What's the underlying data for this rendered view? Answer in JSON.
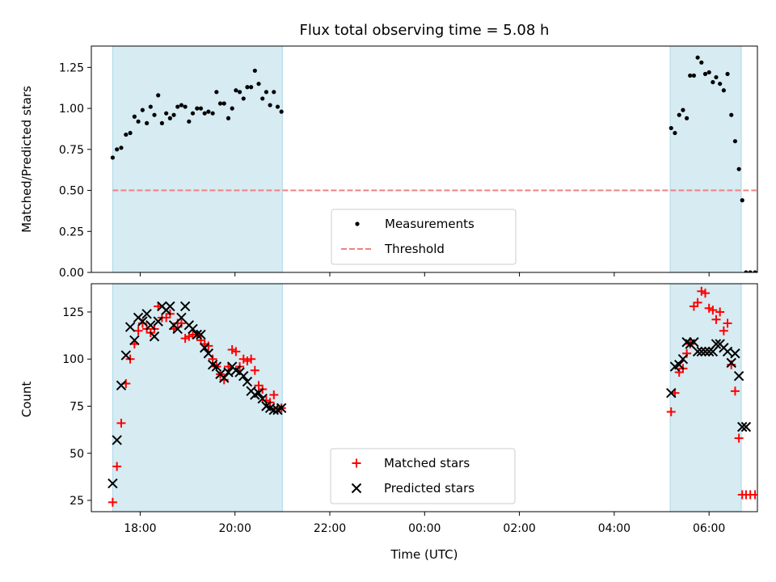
{
  "chart_data": {
    "type": "scatter",
    "title": "Flux total observing time = 5.08 h",
    "xlabel": "Time (UTC)",
    "x_ticks": [
      "18:00",
      "20:00",
      "22:00",
      "00:00",
      "02:00",
      "04:00",
      "06:00"
    ],
    "x_tick_hours": [
      18,
      20,
      22,
      24,
      26,
      28,
      30
    ],
    "xlim_hours": [
      16.97,
      31.02
    ],
    "shaded_intervals_hours": [
      [
        17.42,
        21.0
      ],
      [
        29.18,
        30.68
      ]
    ],
    "colors": {
      "shade": "#add8e6",
      "measurements": "#000000",
      "threshold": "#f08080",
      "matched": "#ff0000",
      "predicted": "#000000"
    },
    "panels": [
      {
        "id": "ratio",
        "ylabel": "Matched/Predicted stars",
        "ylim": [
          0,
          1.38
        ],
        "y_ticks": [
          "0.00",
          "0.25",
          "0.50",
          "0.75",
          "1.00",
          "1.25"
        ],
        "y_tick_values": [
          0,
          0.25,
          0.5,
          0.75,
          1.0,
          1.25
        ],
        "threshold": {
          "value": 0.5,
          "x_range_hours": [
            17.42,
            31.0
          ]
        },
        "legend": {
          "placement": "lower-center",
          "entries": [
            "Measurements",
            "Threshold"
          ]
        },
        "series": [
          {
            "name": "Measurements",
            "marker": "dot",
            "x_hours": [
              17.42,
              17.51,
              17.6,
              17.7,
              17.79,
              17.88,
              17.96,
              18.05,
              18.14,
              18.22,
              18.3,
              18.38,
              18.46,
              18.55,
              18.63,
              18.71,
              18.79,
              18.87,
              18.95,
              19.03,
              19.11,
              19.2,
              19.28,
              19.36,
              19.44,
              19.53,
              19.61,
              19.69,
              19.77,
              19.86,
              19.94,
              20.02,
              20.1,
              20.18,
              20.26,
              20.34,
              20.42,
              20.5,
              20.58,
              20.66,
              20.74,
              20.82,
              20.9,
              20.98,
              29.2,
              29.28,
              29.37,
              29.45,
              29.53,
              29.6,
              29.68,
              29.76,
              29.84,
              29.92,
              30.0,
              30.08,
              30.15,
              30.23,
              30.31,
              30.39,
              30.47,
              30.55,
              30.63,
              30.7,
              30.78,
              30.87,
              30.97
            ],
            "y": [
              0.7,
              0.75,
              0.76,
              0.84,
              0.85,
              0.95,
              0.92,
              0.99,
              0.91,
              1.01,
              0.96,
              1.08,
              0.91,
              0.97,
              0.94,
              0.96,
              1.01,
              1.02,
              1.01,
              0.92,
              0.97,
              1.0,
              1.0,
              0.97,
              0.98,
              0.97,
              1.1,
              1.03,
              1.03,
              0.94,
              1.0,
              1.11,
              1.1,
              1.06,
              1.13,
              1.13,
              1.23,
              1.15,
              1.06,
              1.1,
              1.02,
              1.1,
              1.01,
              0.98,
              0.88,
              0.85,
              0.96,
              0.99,
              0.94,
              1.2,
              1.2,
              1.31,
              1.28,
              1.21,
              1.22,
              1.16,
              1.19,
              1.15,
              1.11,
              1.21,
              0.96,
              0.8,
              0.63,
              0.44,
              0.0,
              0.0,
              0.0
            ]
          }
        ]
      },
      {
        "id": "counts",
        "ylabel": "Count",
        "ylim": [
          19,
          140
        ],
        "y_ticks": [
          "25",
          "50",
          "75",
          "100",
          "125"
        ],
        "y_tick_values": [
          25,
          50,
          75,
          100,
          125
        ],
        "legend": {
          "placement": "lower-center",
          "entries": [
            "Matched stars",
            "Predicted stars"
          ]
        },
        "series": [
          {
            "name": "Matched stars",
            "marker": "plus",
            "x_hours": [
              17.42,
              17.51,
              17.6,
              17.7,
              17.79,
              17.88,
              17.96,
              18.05,
              18.14,
              18.22,
              18.3,
              18.38,
              18.46,
              18.55,
              18.63,
              18.71,
              18.79,
              18.87,
              18.95,
              19.03,
              19.11,
              19.2,
              19.28,
              19.36,
              19.44,
              19.53,
              19.61,
              19.69,
              19.77,
              19.86,
              19.94,
              20.02,
              20.1,
              20.18,
              20.26,
              20.34,
              20.42,
              20.5,
              20.58,
              20.66,
              20.74,
              20.82,
              20.9,
              20.98,
              29.2,
              29.28,
              29.37,
              29.45,
              29.53,
              29.6,
              29.68,
              29.76,
              29.84,
              29.92,
              30.0,
              30.08,
              30.15,
              30.23,
              30.31,
              30.39,
              30.47,
              30.55,
              30.63,
              30.7,
              30.78,
              30.87,
              30.97
            ],
            "y": [
              24,
              43,
              66,
              87,
              100,
              108,
              115,
              119,
              116,
              114,
              116,
              128,
              122,
              122,
              124,
              116,
              119,
              119,
              111,
              112,
              113,
              113,
              110,
              108,
              107,
              100,
              96,
              92,
              89,
              96,
              105,
              104,
              96,
              100,
              99,
              100,
              94,
              86,
              84,
              78,
              77,
              81,
              74,
              74,
              72,
              82,
              93,
              95,
              103,
              108,
              128,
              130,
              136,
              135,
              127,
              126,
              121,
              125,
              115,
              119,
              97,
              83,
              58,
              28,
              28,
              28,
              28
            ]
          },
          {
            "name": "Predicted stars",
            "marker": "x",
            "x_hours": [
              17.42,
              17.51,
              17.6,
              17.7,
              17.79,
              17.88,
              17.96,
              18.05,
              18.14,
              18.22,
              18.3,
              18.38,
              18.46,
              18.55,
              18.63,
              18.71,
              18.79,
              18.87,
              18.95,
              19.03,
              19.11,
              19.2,
              19.28,
              19.36,
              19.44,
              19.53,
              19.61,
              19.69,
              19.77,
              19.86,
              19.94,
              20.02,
              20.1,
              20.18,
              20.26,
              20.34,
              20.42,
              20.5,
              20.58,
              20.66,
              20.74,
              20.82,
              20.9,
              20.98,
              29.2,
              29.28,
              29.37,
              29.45,
              29.53,
              29.6,
              29.68,
              29.76,
              29.84,
              29.92,
              30.0,
              30.08,
              30.15,
              30.23,
              30.31,
              30.39,
              30.47,
              30.55,
              30.63,
              30.7,
              30.78
            ],
            "y": [
              34,
              57,
              86,
              102,
              117,
              110,
              122,
              120,
              124,
              118,
              112,
              120,
              128,
              126,
              128,
              118,
              116,
              122,
              128,
              118,
              116,
              113,
              113,
              106,
              103,
              97,
              96,
              92,
              90,
              93,
              96,
              94,
              93,
              91,
              88,
              83,
              81,
              82,
              79,
              75,
              74,
              73,
              73,
              74,
              82,
              96,
              97,
              100,
              109,
              108,
              109,
              104,
              104,
              104,
              104,
              104,
              108,
              108,
              106,
              104,
              98,
              103,
              91,
              64,
              64
            ]
          }
        ]
      }
    ]
  }
}
